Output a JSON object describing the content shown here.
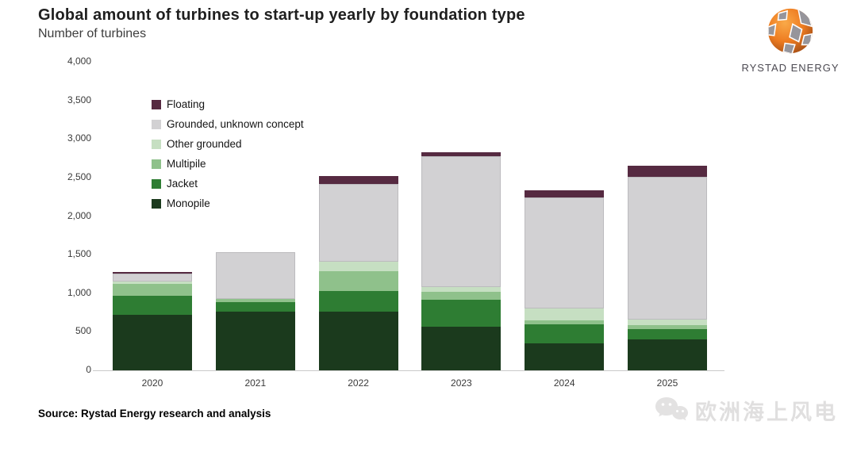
{
  "header": {
    "title": "Global amount of turbines to start-up yearly by foundation type",
    "subtitle": "Number of turbines"
  },
  "logo": {
    "text": "RYSTAD ENERGY"
  },
  "footer": {
    "source": "Source: Rystad Energy research and analysis",
    "watermark": "欧洲海上风电"
  },
  "chart_data": {
    "type": "bar",
    "stacked": true,
    "title": "Global amount of turbines to start-up yearly by foundation type",
    "ylabel": "Number of turbines",
    "xlabel": "",
    "grid": false,
    "legend_position": "upper-left-inside",
    "categories": [
      "2020",
      "2021",
      "2022",
      "2023",
      "2024",
      "2025"
    ],
    "series": [
      {
        "name": "Monopile",
        "color": "#1b3a1d",
        "values": [
          720,
          760,
          760,
          570,
          350,
          400
        ]
      },
      {
        "name": "Jacket",
        "color": "#2e7d33",
        "values": [
          250,
          120,
          270,
          350,
          250,
          130
        ]
      },
      {
        "name": "Multipile",
        "color": "#8fc18b",
        "values": [
          150,
          50,
          260,
          100,
          50,
          60
        ]
      },
      {
        "name": "Other grounded",
        "color": "#c6dfc2",
        "values": [
          30,
          0,
          120,
          55,
          150,
          65
        ]
      },
      {
        "name": "Grounded, unknown concept",
        "color": "#d2d1d3",
        "values": [
          110,
          600,
          1010,
          1705,
          1445,
          1855
        ]
      },
      {
        "name": "Floating",
        "color": "#562a41",
        "values": [
          20,
          0,
          100,
          50,
          90,
          145
        ]
      }
    ],
    "legend_order": [
      "Floating",
      "Grounded, unknown concept",
      "Other grounded",
      "Multipile",
      "Jacket",
      "Monopile"
    ],
    "ylim": [
      0,
      4000
    ],
    "ytick_step": 500,
    "yticks": [
      "0",
      "500",
      "1,000",
      "1,500",
      "2,000",
      "2,500",
      "3,000",
      "3,500",
      "4,000"
    ],
    "gray_series": "Grounded, unknown concept"
  }
}
